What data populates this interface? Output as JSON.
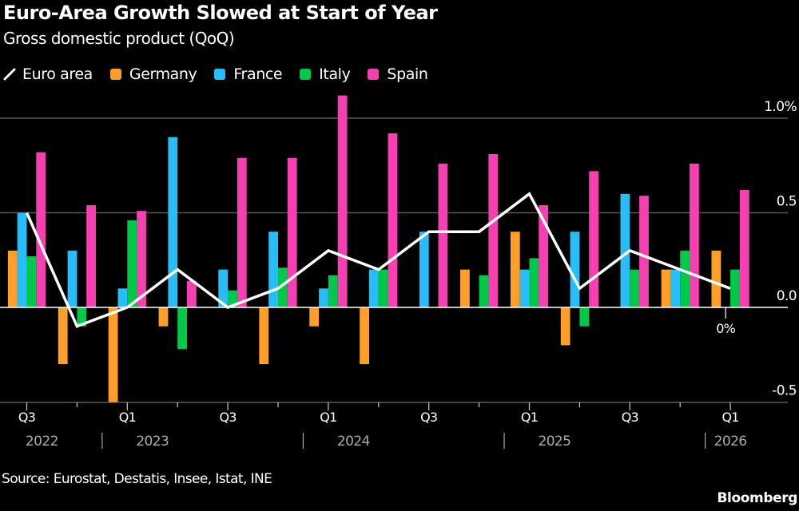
{
  "chart_data": {
    "type": "bar",
    "title": "Euro-Area Growth Slowed at Start of Year",
    "subtitle": "Gross domestic product (QoQ)",
    "categories": [
      "Q3 2022",
      "Q4 2022",
      "Q1 2023",
      "Q2 2023",
      "Q3 2023",
      "Q4 2023",
      "Q1 2024",
      "Q2 2024",
      "Q3 2024",
      "Q4 2024",
      "Q1 2025",
      "Q2 2025",
      "Q3 2025",
      "Q4 2025",
      "Q1 2026"
    ],
    "x_tick_labels": [
      "Q3",
      "",
      "Q1",
      "",
      "Q3",
      "",
      "Q1",
      "",
      "Q3",
      "",
      "Q1",
      "",
      "Q3",
      "",
      "Q1"
    ],
    "year_labels": [
      "2022",
      "2023",
      "2024",
      "2025",
      "2026"
    ],
    "series": [
      {
        "name": "Germany",
        "kind": "bar",
        "color": "#ff9f2a",
        "values": [
          0.3,
          -0.3,
          -0.5,
          -0.1,
          0.0,
          -0.3,
          -0.1,
          -0.3,
          0.0,
          0.2,
          0.4,
          -0.2,
          0.0,
          0.2,
          0.3
        ]
      },
      {
        "name": "France",
        "kind": "bar",
        "color": "#29bdf7",
        "values": [
          0.5,
          0.3,
          0.1,
          0.9,
          0.2,
          0.4,
          0.1,
          0.2,
          0.4,
          0.0,
          0.2,
          0.4,
          0.6,
          0.2,
          0.0
        ]
      },
      {
        "name": "Italy",
        "kind": "bar",
        "color": "#00c94a",
        "values": [
          0.27,
          -0.1,
          0.46,
          -0.22,
          0.09,
          0.21,
          0.17,
          0.2,
          0.0,
          0.17,
          0.26,
          -0.1,
          0.2,
          0.3,
          0.2
        ]
      },
      {
        "name": "Spain",
        "kind": "bar",
        "color": "#f63fb0",
        "values": [
          0.82,
          0.54,
          0.51,
          0.14,
          0.79,
          0.79,
          1.12,
          0.92,
          0.76,
          0.81,
          0.54,
          0.72,
          0.59,
          0.76,
          0.62
        ]
      },
      {
        "name": "Euro area",
        "kind": "line",
        "color": "#ffffff",
        "values": [
          0.5,
          -0.1,
          0.0,
          0.2,
          0.0,
          0.1,
          0.3,
          0.2,
          0.4,
          0.4,
          0.6,
          0.1,
          0.3,
          0.2,
          0.1
        ]
      }
    ],
    "legend_order": [
      "Euro area",
      "Germany",
      "France",
      "Italy",
      "Spain"
    ],
    "legend_position": "top-left",
    "ylim": [
      -0.5,
      1.16
    ],
    "y_ticks": [
      {
        "value": 1.0,
        "label": "1.0%"
      },
      {
        "value": 0.5,
        "label": "0.5"
      },
      {
        "value": 0.0,
        "label": "0.0"
      },
      {
        "value": -0.5,
        "label": "-0.5"
      }
    ],
    "y_axis_side": "right",
    "grid": true,
    "annotation": {
      "category": "Q1 2026",
      "series": "France",
      "label": "0%"
    },
    "source": "Source: Eurostat, Destatis, Insee, Istat, INE",
    "brand": "Bloomberg"
  }
}
